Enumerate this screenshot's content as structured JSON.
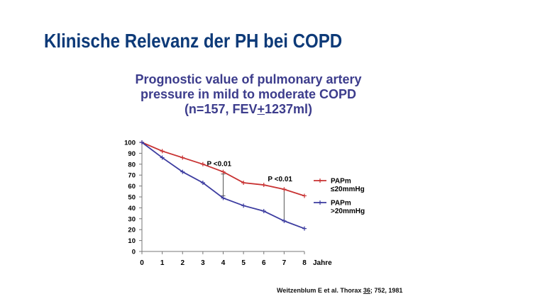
{
  "slide": {
    "title": "Klinische Relevanz der PH bei COPD"
  },
  "chart_title": {
    "line1": "Prognostic value of pulmonary artery",
    "line2": "pressure in mild to moderate COPD",
    "line3_before": "(n=157, FEV",
    "line3_plus": "+",
    "line3_after": "1237ml)"
  },
  "citation": {
    "before": "Weitzenblum E et al. Thorax ",
    "volume": "36",
    "after": "; 752, 1981"
  },
  "chart_data": {
    "type": "line",
    "x": [
      0,
      1,
      2,
      3,
      4,
      5,
      6,
      7,
      8
    ],
    "xlabel": "Jahre",
    "ylabel": "",
    "xlim": [
      0,
      8
    ],
    "ylim": [
      0,
      100
    ],
    "yticks": [
      0,
      10,
      20,
      30,
      40,
      50,
      60,
      70,
      80,
      90,
      100
    ],
    "grid": false,
    "legend": "right",
    "series": [
      {
        "name_line1": "PAPm",
        "name_line2": "≤20mmHg",
        "color": "#c83232",
        "values": [
          100,
          92,
          86,
          80,
          73,
          63,
          61,
          57,
          51
        ]
      },
      {
        "name_line1": "PAPm",
        "name_line2": ">20mmHg",
        "color": "#3c3ca0",
        "values": [
          100,
          86,
          73,
          63,
          49,
          42,
          37,
          28,
          21
        ]
      }
    ],
    "annotations": [
      {
        "text": "P <0.01",
        "x": 4,
        "y_low": 51,
        "y_high": 71
      },
      {
        "text": "P <0.01",
        "x": 7,
        "y_low": 28,
        "y_high": 57
      }
    ]
  }
}
